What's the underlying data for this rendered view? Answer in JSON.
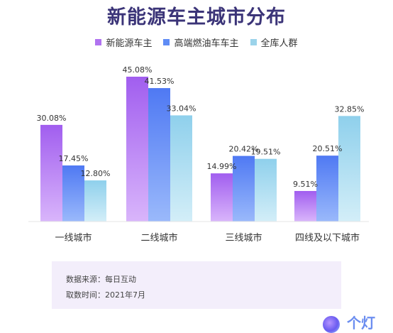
{
  "colors": {
    "new_energy": "#b073f0",
    "fuel": "#5f8cf5",
    "all": "#9bd3ea",
    "title": "#3b3478"
  },
  "chart_data": {
    "type": "bar",
    "title": "新能源车主城市分布",
    "categories": [
      "一线城市",
      "二线城市",
      "三线城市",
      "四线及以下城市"
    ],
    "series": [
      {
        "name": "新能源车主",
        "values": [
          30.08,
          45.08,
          14.99,
          9.51
        ],
        "labels": [
          "30.08%",
          "45.08%",
          "14.99%",
          "9.51%"
        ]
      },
      {
        "name": "高端燃油车车主",
        "values": [
          17.45,
          41.53,
          20.42,
          20.51
        ],
        "labels": [
          "17.45%",
          "41.53%",
          "20.42%",
          "20.51%"
        ]
      },
      {
        "name": "全库人群",
        "values": [
          12.8,
          33.04,
          19.51,
          32.85
        ],
        "labels": [
          "12.80%",
          "33.04%",
          "19.51%",
          "32.85%"
        ]
      }
    ],
    "ylim": [
      0,
      45.08
    ],
    "legend": "top",
    "grid": false,
    "xlabel": "",
    "ylabel": ""
  },
  "source": {
    "line1": "数据来源：每日互动",
    "line2": "取数时间：2021年7月"
  },
  "logo": {
    "text": "个灯",
    "icon": "logo-icon"
  }
}
